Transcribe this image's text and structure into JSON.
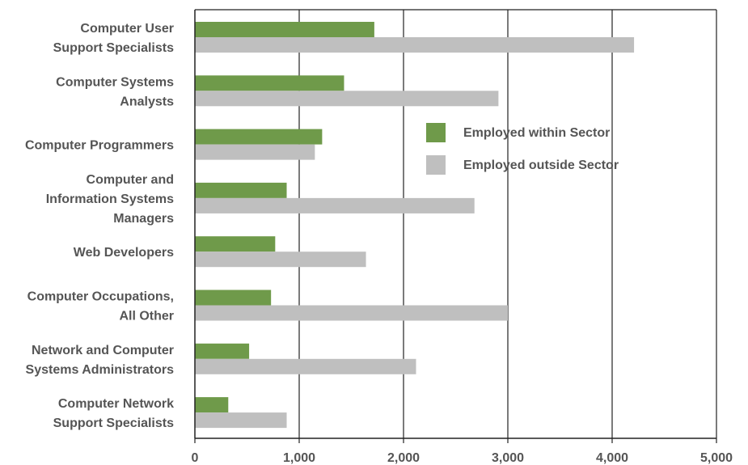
{
  "chart_data": {
    "type": "bar",
    "orientation": "horizontal",
    "categories": [
      [
        "Computer User",
        "Support Specialists"
      ],
      [
        "Computer Systems",
        "Analysts"
      ],
      [
        "Computer Programmers"
      ],
      [
        "Computer and",
        "Information Systems",
        "Managers"
      ],
      [
        "Web Developers"
      ],
      [
        "Computer Occupations,",
        "All Other"
      ],
      [
        "Network and Computer",
        "Systems Administrators"
      ],
      [
        "Computer Network",
        "Support Specialists"
      ]
    ],
    "series": [
      {
        "name": "Employed within Sector",
        "color": "#6f9a4a",
        "values": [
          1720,
          1430,
          1220,
          880,
          770,
          730,
          520,
          320
        ]
      },
      {
        "name": "Employed outside Sector",
        "color": "#bfbfbf",
        "values": [
          4210,
          2910,
          1150,
          2680,
          1640,
          3000,
          2120,
          880
        ]
      }
    ],
    "xlim": [
      0,
      5000
    ],
    "xticks": [
      0,
      1000,
      2000,
      3000,
      4000,
      5000
    ],
    "xtick_labels": [
      "0",
      "1,000",
      "2,000",
      "3,000",
      "4,000",
      "5,000"
    ],
    "xlabel": "",
    "ylabel": "",
    "grid": "vertical",
    "legend_position": "upper-right inside plot"
  }
}
